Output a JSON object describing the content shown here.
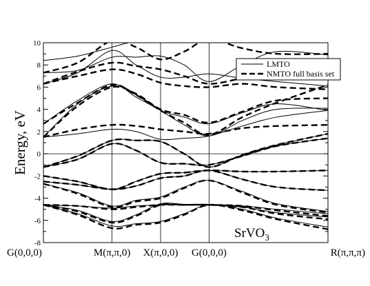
{
  "chart_data": {
    "type": "line",
    "title": "",
    "xlabel": "",
    "ylabel": "Energy, eV",
    "ylim": [
      -8,
      10
    ],
    "yticks": [
      -8,
      -6,
      -4,
      -2,
      0,
      2,
      4,
      6,
      8,
      10
    ],
    "x_points": [
      {
        "label": "G(0,0,0)",
        "pos": 0
      },
      {
        "label": "M(π,π,0)",
        "pos": 1
      },
      {
        "label": "X(π,0,0)",
        "pos": 1.7071
      },
      {
        "label": "G(0,0,0)",
        "pos": 2.4142
      },
      {
        "label": "R(π,π,π)",
        "pos": 4.1463
      }
    ],
    "annotation": {
      "text": "SrVO",
      "sub": "3"
    },
    "legend": {
      "placement": "top-right",
      "entries": [
        {
          "label": "LMTO",
          "style": "solid"
        },
        {
          "label": "NMTO full basis set",
          "style": "dashed"
        }
      ]
    },
    "series": [
      {
        "name": "LMTO",
        "style": "solid",
        "bands": [
          {
            "x": [
              0,
              0.5,
              1,
              1.35,
              1.7071,
              2.05,
              2.4142,
              2.9,
              3.4,
              4.1463
            ],
            "y": [
              -4.6,
              -5.4,
              -6.5,
              -6.3,
              -6.1,
              -5.4,
              -4.6,
              -5.0,
              -5.8,
              -6.6
            ]
          },
          {
            "x": [
              0,
              0.5,
              1,
              1.35,
              1.7071,
              2.05,
              2.4142,
              2.9,
              3.4,
              4.1463
            ],
            "y": [
              -4.6,
              -5.1,
              -6.1,
              -5.5,
              -4.5,
              -4.55,
              -4.6,
              -4.8,
              -5.3,
              -5.7
            ]
          },
          {
            "x": [
              0,
              0.5,
              1,
              1.35,
              1.7071,
              2.05,
              2.4142,
              2.9,
              3.4,
              4.1463
            ],
            "y": [
              -4.6,
              -4.7,
              -4.9,
              -4.7,
              -4.6,
              -4.6,
              -4.6,
              -4.7,
              -5.0,
              -5.4
            ]
          },
          {
            "x": [
              0,
              0.5,
              1,
              1.35,
              1.7071,
              2.05,
              2.4142,
              2.9,
              3.4,
              4.1463
            ],
            "y": [
              -2.7,
              -3.5,
              -4.7,
              -4.2,
              -3.9,
              -3.0,
              -2.4,
              -3.4,
              -4.5,
              -5.2
            ]
          },
          {
            "x": [
              0,
              0.5,
              1,
              1.35,
              1.7071,
              2.05,
              2.4142,
              2.9,
              3.4,
              4.1463
            ],
            "y": [
              -2.5,
              -2.8,
              -3.2,
              -2.9,
              -2.2,
              -2.0,
              -1.5,
              -2.3,
              -3.0,
              -3.3
            ]
          },
          {
            "x": [
              0,
              0.5,
              1,
              1.35,
              1.7071,
              2.05,
              2.4142,
              2.9,
              3.4,
              4.1463
            ],
            "y": [
              -2.0,
              -2.5,
              -3.2,
              -2.5,
              -1.8,
              -1.7,
              -1.5,
              -1.6,
              -1.6,
              -1.5
            ]
          },
          {
            "x": [
              0,
              0.5,
              1,
              1.35,
              1.7071,
              2.05,
              2.4142,
              2.9,
              3.4,
              4.1463
            ],
            "y": [
              -1.2,
              -0.2,
              1.2,
              1.2,
              1.1,
              0.0,
              -1.2,
              -0.1,
              0.8,
              1.8
            ]
          },
          {
            "x": [
              0,
              0.5,
              1,
              1.35,
              1.7071,
              2.05,
              2.4142,
              2.9,
              3.4,
              4.1463
            ],
            "y": [
              -1.2,
              -0.5,
              0.9,
              0.3,
              -0.8,
              -0.9,
              -1.0,
              -0.2,
              0.7,
              1.4
            ]
          },
          {
            "x": [
              0,
              0.5,
              1,
              1.35,
              1.7071,
              2.05,
              2.4142,
              2.9,
              3.4,
              4.1463
            ],
            "y": [
              1.5,
              1.8,
              2.2,
              2.0,
              1.3,
              1.4,
              1.6,
              2.5,
              3.3,
              3.9
            ]
          },
          {
            "x": [
              0,
              0.5,
              1,
              1.35,
              1.7071,
              2.05,
              2.4142,
              2.9,
              3.4,
              4.1463
            ],
            "y": [
              1.5,
              4.5,
              6.1,
              5.3,
              3.9,
              3.3,
              2.7,
              3.7,
              4.5,
              3.9
            ]
          },
          {
            "x": [
              0,
              0.5,
              1,
              1.35,
              1.7071,
              2.05,
              2.4142,
              2.9,
              3.4,
              4.1463
            ],
            "y": [
              2.7,
              4.8,
              6.3,
              5.1,
              3.9,
              2.6,
              1.6,
              3.0,
              4.0,
              4.1
            ]
          },
          {
            "x": [
              0,
              0.5,
              1,
              1.35,
              1.7071,
              2.05,
              2.4142,
              2.9,
              3.4,
              4.1463
            ],
            "y": [
              6.3,
              7.3,
              9.3,
              8.0,
              6.9,
              6.9,
              7.2,
              6.8,
              6.5,
              6.1
            ]
          },
          {
            "x": [
              0,
              0.5,
              1,
              1.35,
              1.7071,
              2.05,
              2.4142,
              2.9,
              3.4,
              4.1463
            ],
            "y": [
              7.3,
              7.5,
              8.7,
              8.7,
              8.8,
              8.0,
              6.5,
              8.0,
              9.2,
              8.9
            ]
          },
          {
            "x": [
              0,
              0.5,
              1,
              1.35,
              1.7071,
              2.05,
              2.4142,
              2.9,
              3.4,
              4.1463
            ],
            "y": [
              8.4,
              8.8,
              9.6,
              10.2,
              10.6,
              10.8,
              11.0,
              10.5,
              10.2,
              10.0
            ]
          }
        ]
      },
      {
        "name": "NMTO full basis set",
        "style": "dashed",
        "bands": [
          {
            "x": [
              0,
              0.5,
              1,
              1.35,
              1.7071,
              2.05,
              2.4142,
              2.9,
              3.4,
              4.1463
            ],
            "y": [
              -4.6,
              -5.5,
              -6.7,
              -6.4,
              -6.2,
              -5.5,
              -4.6,
              -5.1,
              -5.9,
              -6.8
            ]
          },
          {
            "x": [
              0,
              0.5,
              1,
              1.35,
              1.7071,
              2.05,
              2.4142,
              2.9,
              3.4,
              4.1463
            ],
            "y": [
              -4.6,
              -5.2,
              -6.2,
              -5.6,
              -4.6,
              -4.6,
              -4.6,
              -4.8,
              -5.4,
              -5.9
            ]
          },
          {
            "x": [
              0,
              0.5,
              1,
              1.35,
              1.7071,
              2.05,
              2.4142,
              2.9,
              3.4,
              4.1463
            ],
            "y": [
              -4.6,
              -4.7,
              -5.0,
              -4.8,
              -4.6,
              -4.6,
              -4.6,
              -4.7,
              -5.1,
              -5.6
            ]
          },
          {
            "x": [
              0,
              0.5,
              1,
              1.35,
              1.7071,
              2.05,
              2.4142,
              2.9,
              3.4,
              4.1463
            ],
            "y": [
              -2.7,
              -3.6,
              -4.8,
              -4.3,
              -4.0,
              -3.1,
              -2.4,
              -3.5,
              -4.6,
              -5.3
            ]
          },
          {
            "x": [
              0,
              0.5,
              1,
              1.35,
              1.7071,
              2.05,
              2.4142,
              2.9,
              3.4,
              4.1463
            ],
            "y": [
              -2.5,
              -2.8,
              -3.2,
              -2.9,
              -2.2,
              -2.0,
              -1.5,
              -2.3,
              -3.0,
              -3.3
            ]
          },
          {
            "x": [
              0,
              0.5,
              1,
              1.35,
              1.7071,
              2.05,
              2.4142,
              2.9,
              3.4,
              4.1463
            ],
            "y": [
              -2.0,
              -2.5,
              -3.2,
              -2.5,
              -1.8,
              -1.7,
              -1.5,
              -1.6,
              -1.6,
              -1.5
            ]
          },
          {
            "x": [
              0,
              0.5,
              1,
              1.35,
              1.7071,
              2.05,
              2.4142,
              2.9,
              3.4,
              4.1463
            ],
            "y": [
              -1.2,
              -0.2,
              1.2,
              1.2,
              1.1,
              0.0,
              -1.2,
              -0.1,
              0.8,
              1.8
            ]
          },
          {
            "x": [
              0,
              0.5,
              1,
              1.35,
              1.7071,
              2.05,
              2.4142,
              2.9,
              3.4,
              4.1463
            ],
            "y": [
              -1.2,
              -0.5,
              0.9,
              0.3,
              -0.8,
              -0.9,
              -1.0,
              -0.2,
              0.7,
              1.4
            ]
          },
          {
            "x": [
              0,
              0.5,
              1,
              1.35,
              1.7071,
              2.05,
              2.4142,
              2.9,
              3.4,
              4.1463
            ],
            "y": [
              1.5,
              2.2,
              2.6,
              2.5,
              2.2,
              2.0,
              1.8,
              2.3,
              2.5,
              2.6
            ]
          },
          {
            "x": [
              0,
              0.5,
              1,
              1.35,
              1.7071,
              2.05,
              2.4142,
              2.9,
              3.4,
              4.1463
            ],
            "y": [
              1.5,
              4.3,
              6.0,
              5.4,
              4.0,
              3.5,
              2.8,
              3.8,
              4.8,
              5.0
            ]
          },
          {
            "x": [
              0,
              0.5,
              1,
              1.35,
              1.7071,
              2.05,
              2.4142,
              2.9,
              3.4,
              4.1463
            ],
            "y": [
              2.7,
              4.6,
              6.2,
              5.3,
              3.9,
              2.8,
              1.7,
              3.3,
              4.6,
              6.2
            ]
          },
          {
            "x": [
              0,
              0.5,
              1,
              1.35,
              1.7071,
              2.05,
              2.4142,
              2.9,
              3.4,
              4.1463
            ],
            "y": [
              6.3,
              7.0,
              7.6,
              7.2,
              6.4,
              6.1,
              6.0,
              6.3,
              6.0,
              5.8
            ]
          },
          {
            "x": [
              0,
              0.5,
              1,
              1.35,
              1.7071,
              2.05,
              2.4142,
              2.9,
              3.4,
              4.1463
            ],
            "y": [
              6.3,
              7.4,
              8.2,
              7.9,
              7.6,
              7.0,
              6.3,
              6.8,
              7.3,
              6.8
            ]
          },
          {
            "x": [
              0,
              0.5,
              1,
              1.35,
              1.7071,
              2.05,
              2.4142,
              2.9,
              3.4,
              4.1463
            ],
            "y": [
              7.3,
              8.2,
              10.2,
              9.6,
              8.5,
              9.2,
              10.3,
              9.5,
              9.0,
              9.0
            ]
          }
        ]
      }
    ]
  }
}
